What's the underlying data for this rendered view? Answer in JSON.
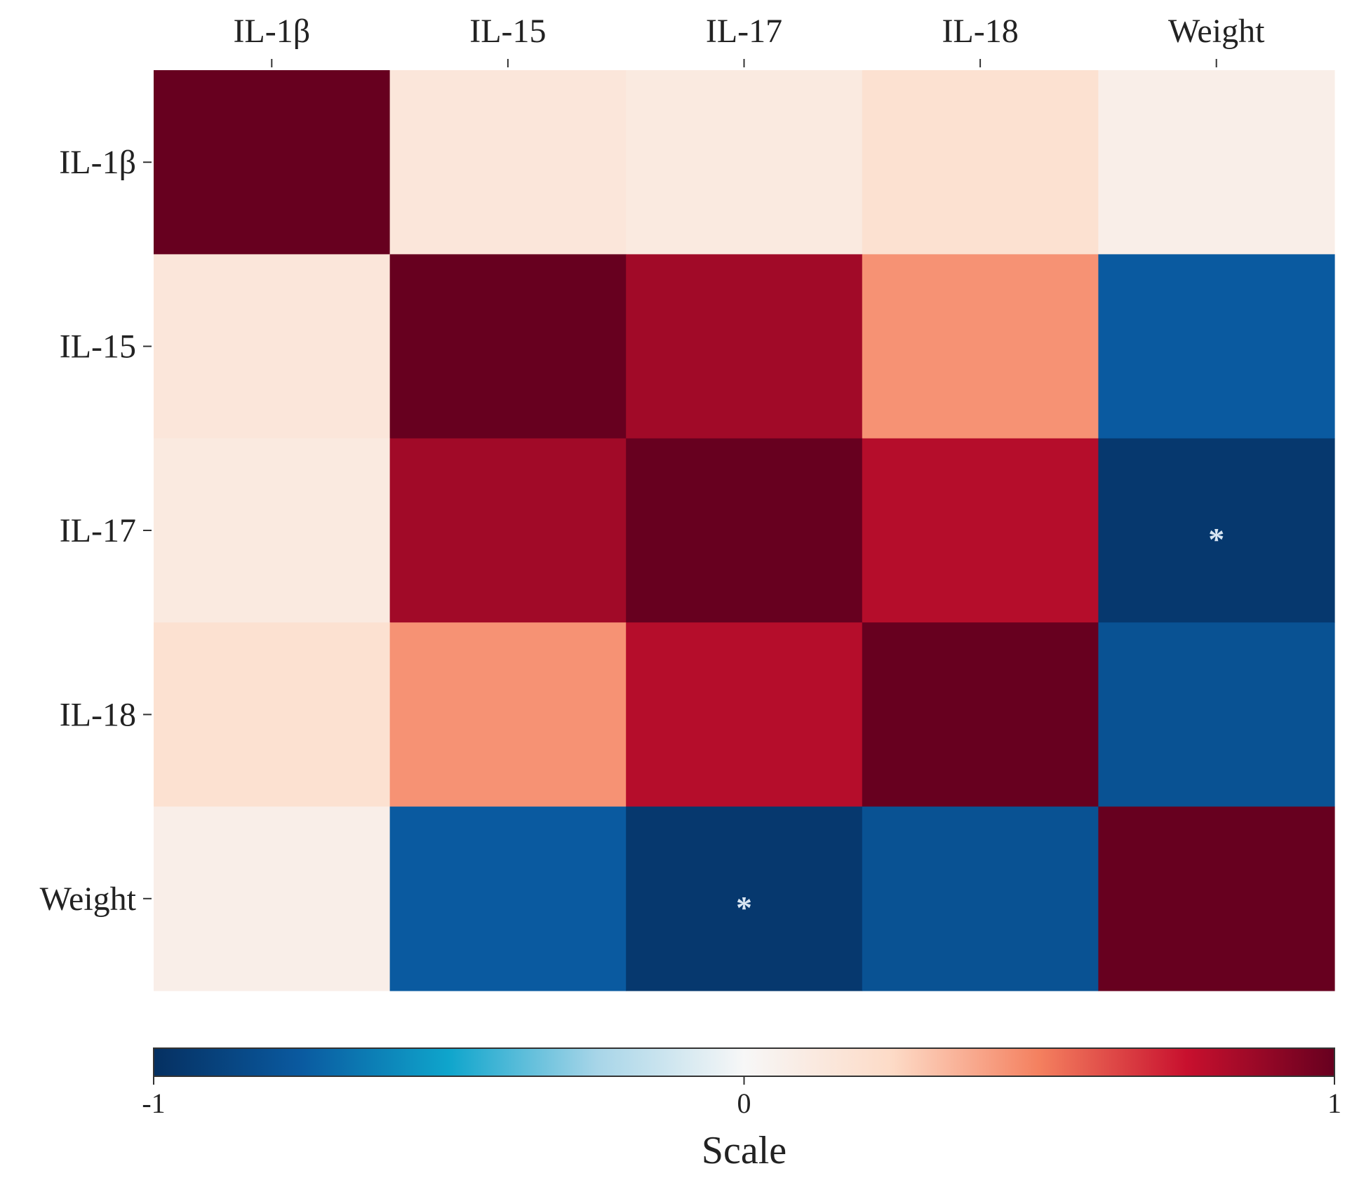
{
  "chart_data": {
    "type": "heatmap",
    "title": "",
    "variables": [
      "IL-1β",
      "IL-15",
      "IL-17",
      "IL-18",
      "Weight"
    ],
    "x_labels": [
      "IL-1β",
      "IL-15",
      "IL-17",
      "IL-18",
      "Weight"
    ],
    "y_labels": [
      "IL-1β",
      "IL-15",
      "IL-17",
      "IL-18",
      "Weight"
    ],
    "values": [
      [
        1.0,
        0.15,
        0.12,
        0.2,
        0.08
      ],
      [
        0.15,
        1.0,
        0.85,
        0.45,
        -0.75
      ],
      [
        0.12,
        0.85,
        1.0,
        0.8,
        -0.95
      ],
      [
        0.2,
        0.45,
        0.8,
        1.0,
        -0.8
      ],
      [
        0.08,
        -0.75,
        -0.95,
        -0.8,
        1.0
      ]
    ],
    "significance": [
      [
        "",
        "",
        "",
        "",
        ""
      ],
      [
        "",
        "",
        "",
        "",
        ""
      ],
      [
        "",
        "",
        "",
        "",
        "*"
      ],
      [
        "",
        "",
        "",
        "",
        ""
      ],
      [
        "",
        "",
        "*",
        "",
        ""
      ]
    ],
    "colorbar": {
      "title": "Scale",
      "min": -1,
      "max": 1,
      "tick_labels": [
        "-1",
        "0",
        "1"
      ],
      "tick_values": [
        -1,
        0,
        1
      ],
      "placement": "bottom"
    },
    "colormap": [
      {
        "value": -1.0,
        "color": "#053061"
      },
      {
        "value": -0.75,
        "color": "#0a5aa0"
      },
      {
        "value": -0.5,
        "color": "#0fa5cc"
      },
      {
        "value": -0.25,
        "color": "#a7d5e8"
      },
      {
        "value": 0.0,
        "color": "#f7f7f7"
      },
      {
        "value": 0.25,
        "color": "#fddbc7"
      },
      {
        "value": 0.5,
        "color": "#f4805f"
      },
      {
        "value": 0.75,
        "color": "#c8102e"
      },
      {
        "value": 1.0,
        "color": "#67001f"
      }
    ],
    "significance_mark_color": "#d9e6f2"
  }
}
